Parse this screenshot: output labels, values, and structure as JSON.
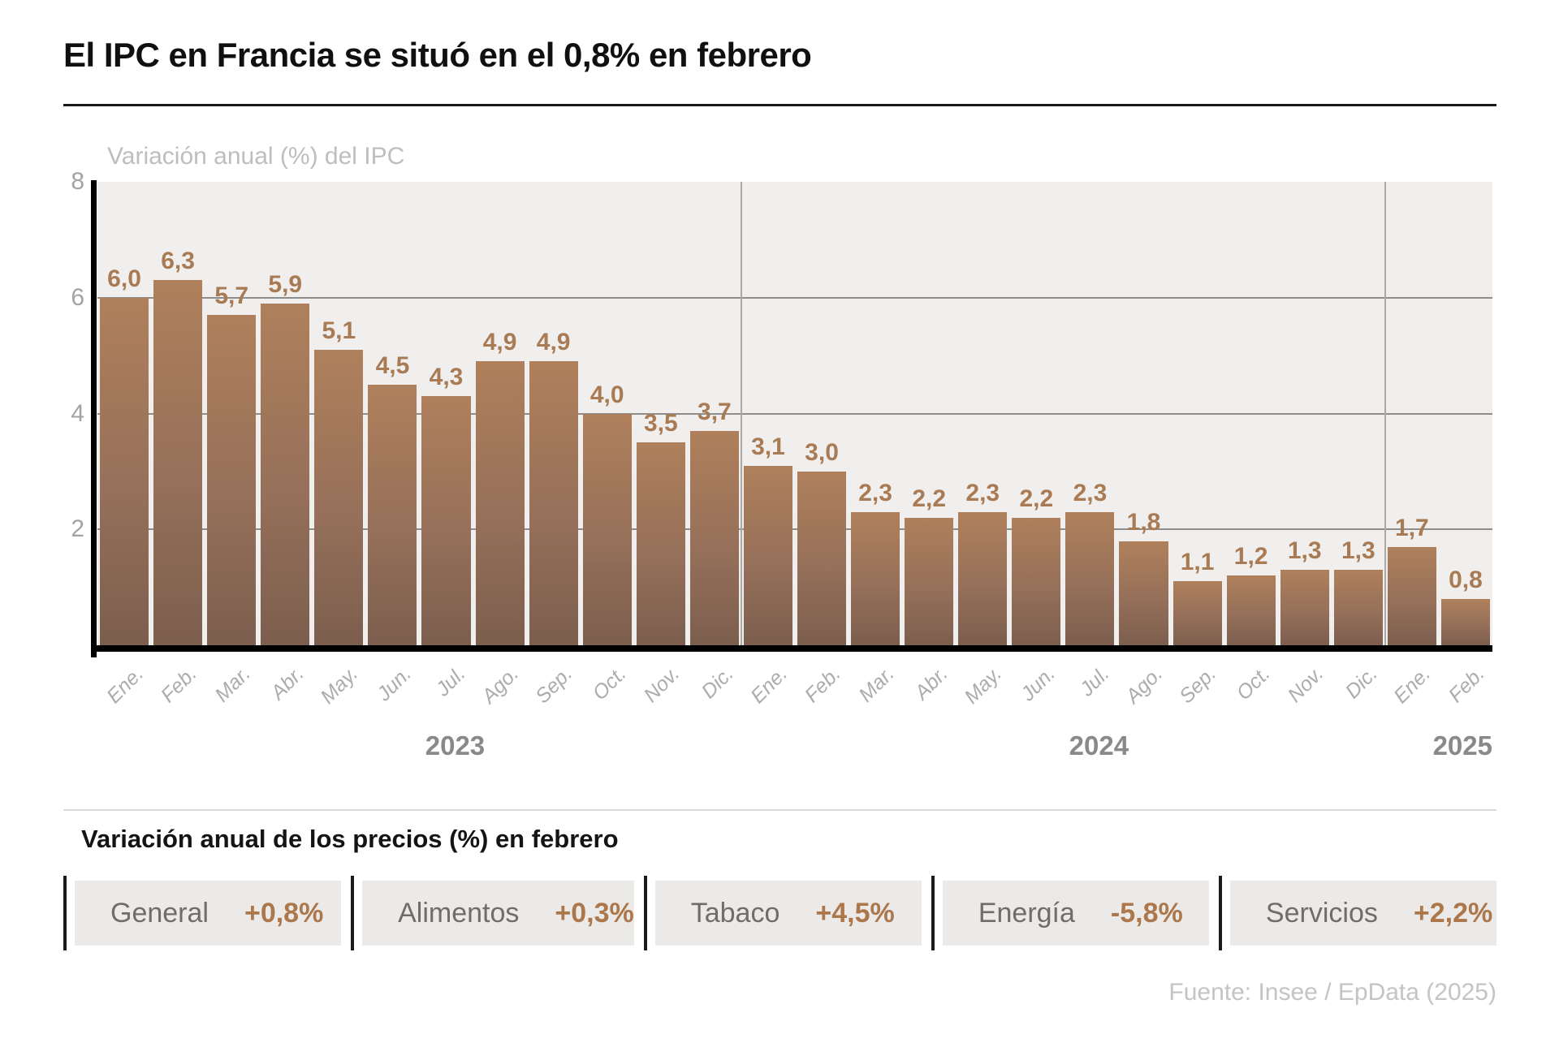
{
  "title": "El IPC en Francia se situó en el 0,8% en febrero",
  "footer": "Fuente: Insee / EpData (2025)",
  "chart_data": {
    "type": "bar",
    "title": "Variación anual (%) del IPC",
    "categories": [
      "Ene.",
      "Feb.",
      "Mar.",
      "Abr.",
      "May.",
      "Jun.",
      "Jul.",
      "Ago.",
      "Sep.",
      "Oct.",
      "Nov.",
      "Dic.",
      "Ene.",
      "Feb.",
      "Mar.",
      "Abr.",
      "May.",
      "Jun.",
      "Jul.",
      "Ago.",
      "Sep.",
      "Oct.",
      "Nov.",
      "Dic.",
      "Ene.",
      "Feb."
    ],
    "values": [
      6.0,
      6.3,
      5.7,
      5.9,
      5.1,
      4.5,
      4.3,
      4.9,
      4.9,
      4.0,
      3.5,
      3.7,
      3.1,
      3.0,
      2.3,
      2.2,
      2.3,
      2.2,
      2.3,
      1.8,
      1.1,
      1.2,
      1.3,
      1.3,
      1.7,
      0.8
    ],
    "value_labels": [
      "6,0",
      "6,3",
      "5,7",
      "5,9",
      "5,1",
      "4,5",
      "4,3",
      "4,9",
      "4,9",
      "4,0",
      "3,5",
      "3,7",
      "3,1",
      "3,0",
      "2,3",
      "2,2",
      "2,3",
      "2,2",
      "2,3",
      "1,8",
      "1,1",
      "1,2",
      "1,3",
      "1,3",
      "1,7",
      "0,8"
    ],
    "years": [
      {
        "label": "2023",
        "start": 0,
        "count": 12
      },
      {
        "label": "2024",
        "start": 12,
        "count": 12
      },
      {
        "label": "2025",
        "start": 24,
        "count": 2
      }
    ],
    "y_ticks": [
      8,
      6,
      4,
      2
    ],
    "ylim": [
      0,
      8
    ],
    "grid": "horizontal gridlines at 2,4,6; vertical dividers at year boundaries",
    "legend_position": "none",
    "colors": {
      "bar_top": "#af805b",
      "bar_bottom": "#7c5e4e",
      "value_label": "#a97b54",
      "plot_background": "#f1efed"
    }
  },
  "panel": {
    "heading": "Variación anual de los precios (%) en febrero",
    "items": [
      {
        "label": "General",
        "value": "+0,8%"
      },
      {
        "label": "Alimentos",
        "value": "+0,3%"
      },
      {
        "label": "Tabaco",
        "value": "+4,5%"
      },
      {
        "label": "Energía",
        "value": "-5,8%"
      },
      {
        "label": "Servicios",
        "value": "+2,2%"
      }
    ]
  }
}
